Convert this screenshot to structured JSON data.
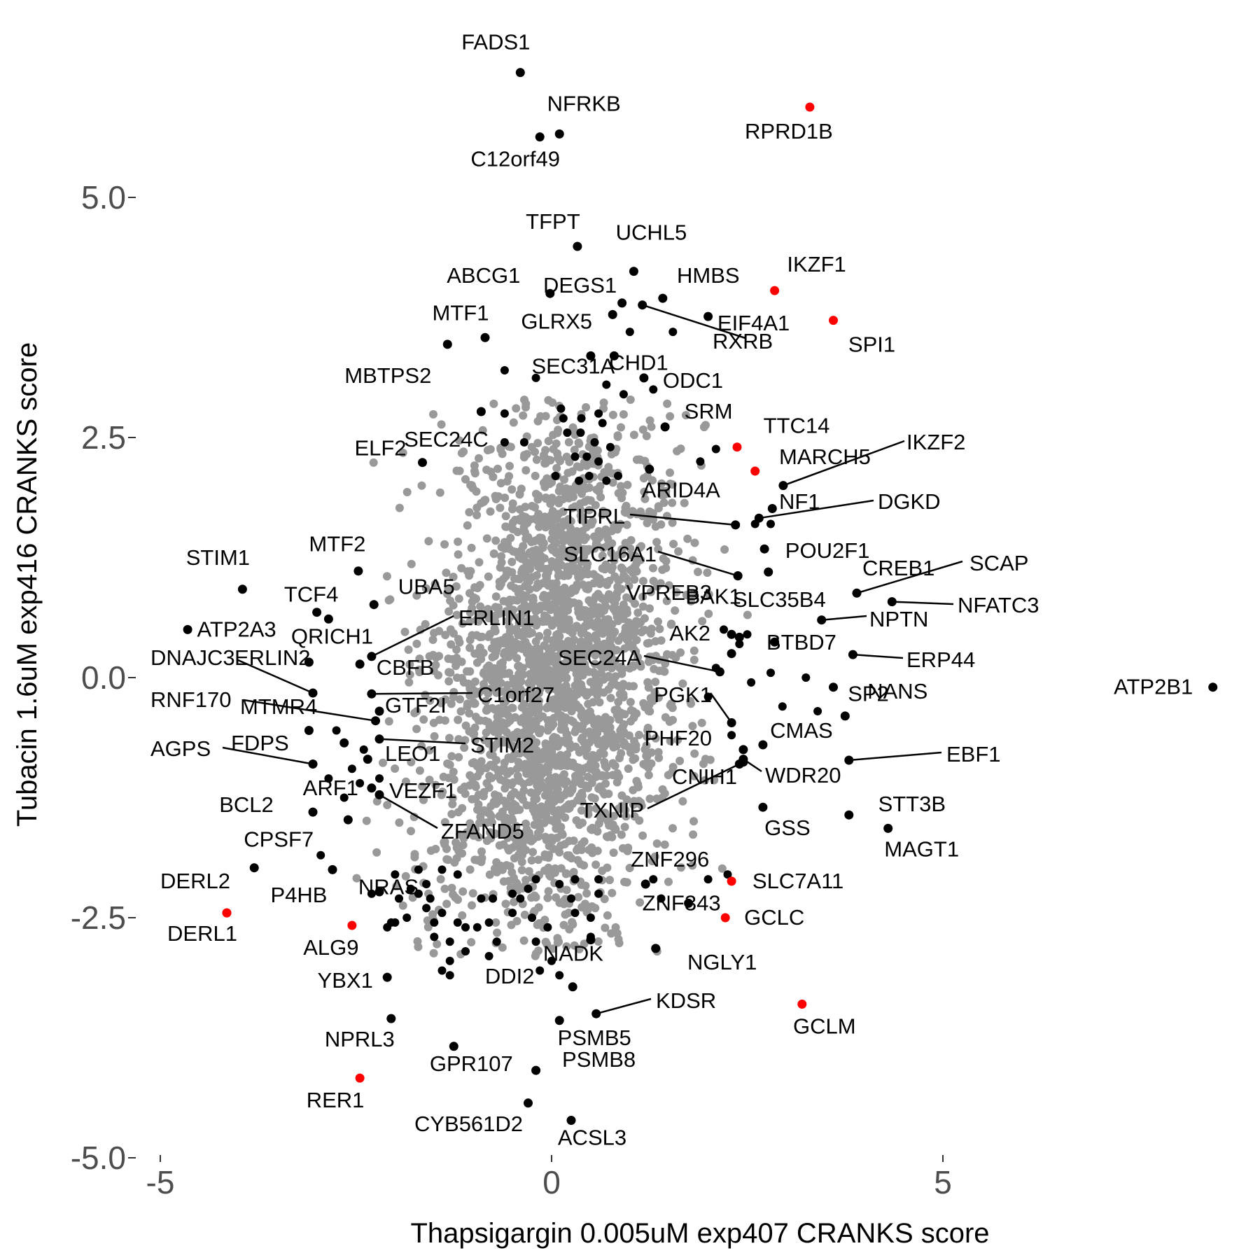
{
  "chart_data": {
    "type": "scatter",
    "title": "",
    "xlabel": "Thapsigargin 0.005uM exp407 CRANKS score",
    "ylabel": "Tubacin 1.6uM exp416 CRANKS score",
    "xlim": [
      -5.3,
      8.6
    ],
    "ylim": [
      -5.2,
      6.9
    ],
    "x_ticks": [
      -5,
      0,
      5
    ],
    "x_tick_labels": [
      "-5",
      "0",
      "5"
    ],
    "y_ticks": [
      5.0,
      2.5,
      0.0,
      -2.5,
      -5.0
    ],
    "y_tick_labels": [
      "5.0",
      "2.5",
      "0.0",
      "-2.5",
      "-5.0"
    ],
    "grid": false,
    "legend": "none",
    "colors": {
      "background": "#d9d9d9",
      "black": "#000000",
      "red": "#ff0000",
      "axis_text": "#4d4d4d"
    },
    "background_cloud": {
      "description": "",
      "color": "#999999"
    },
    "points": [
      {
        "label": "FADS1",
        "x": -0.4,
        "y": 6.3,
        "color": "black"
      },
      {
        "label": "NFRKB",
        "x": 0.1,
        "y": 5.66,
        "color": "black"
      },
      {
        "label": "C12orf49",
        "x": -0.15,
        "y": 5.63,
        "color": "black"
      },
      {
        "label": "RPRD1B",
        "x": 3.3,
        "y": 5.94,
        "color": "red"
      },
      {
        "label": "TFPT",
        "x": 0.33,
        "y": 4.49,
        "color": "black"
      },
      {
        "label": "UCHL5",
        "x": 1.05,
        "y": 4.23,
        "color": "black"
      },
      {
        "label": "IKZF1",
        "x": 2.85,
        "y": 4.03,
        "color": "red"
      },
      {
        "label": "ABCG1",
        "x": -0.02,
        "y": 4.0,
        "color": "black"
      },
      {
        "label": "HMBS",
        "x": 1.42,
        "y": 3.95,
        "color": "black"
      },
      {
        "label": "DEGS1",
        "x": 0.9,
        "y": 3.9,
        "color": "black"
      },
      {
        "label": "RXRB",
        "x": 1.16,
        "y": 3.88,
        "color": "black"
      },
      {
        "label": "GLRX5",
        "x": 0.78,
        "y": 3.78,
        "color": "black"
      },
      {
        "label": "EIF4A1",
        "x": 2.0,
        "y": 3.76,
        "color": "black"
      },
      {
        "label": "SPI1",
        "x": 3.6,
        "y": 3.72,
        "color": "red"
      },
      {
        "label": "MTF1",
        "x": -0.85,
        "y": 3.54,
        "color": "black"
      },
      {
        "label": "MBTPS2",
        "x": -1.33,
        "y": 3.47,
        "color": "black"
      },
      {
        "label": "SEC31A",
        "x": 0.5,
        "y": 3.35,
        "color": "black"
      },
      {
        "label": "CHD1",
        "x": 0.8,
        "y": 3.35,
        "color": "black"
      },
      {
        "label": "ODC1",
        "x": 1.18,
        "y": 3.12,
        "color": "black"
      },
      {
        "label": "ELF2",
        "x": -1.65,
        "y": 2.24,
        "color": "black"
      },
      {
        "label": "SRM",
        "x": 1.45,
        "y": 2.61,
        "color": "black"
      },
      {
        "label": "TTC14",
        "x": 2.37,
        "y": 2.4,
        "color": "red"
      },
      {
        "label": "MARCH5",
        "x": 2.6,
        "y": 2.15,
        "color": "red"
      },
      {
        "label": "IKZF2",
        "x": 2.96,
        "y": 2.0,
        "color": "black"
      },
      {
        "label": "SEC24C",
        "x": -0.9,
        "y": 2.77,
        "color": "black"
      },
      {
        "label": "ARID4A",
        "x": 1.25,
        "y": 2.17,
        "color": "black"
      },
      {
        "label": "NF1",
        "x": 2.82,
        "y": 1.76,
        "color": "black"
      },
      {
        "label": "DGKD",
        "x": 2.65,
        "y": 1.66,
        "color": "black"
      },
      {
        "label": "TIPRL",
        "x": 2.35,
        "y": 1.59,
        "color": "black"
      },
      {
        "label": "POU2F1",
        "x": 2.72,
        "y": 1.34,
        "color": "black"
      },
      {
        "label": "BAK1",
        "x": 2.38,
        "y": 1.06,
        "color": "black"
      },
      {
        "label": "SLC16A1",
        "x": 2.38,
        "y": 1.06,
        "color": "black"
      },
      {
        "label": "CREB1",
        "x": 2.77,
        "y": 1.1,
        "color": "black"
      },
      {
        "label": "SCAP",
        "x": 3.9,
        "y": 0.88,
        "color": "black"
      },
      {
        "label": "NFATC3",
        "x": 4.35,
        "y": 0.79,
        "color": "black"
      },
      {
        "label": "MTF2",
        "x": -2.47,
        "y": 1.11,
        "color": "black"
      },
      {
        "label": "STIM1",
        "x": -3.95,
        "y": 0.92,
        "color": "black"
      },
      {
        "label": "TCF4",
        "x": -3.0,
        "y": 0.68,
        "color": "black"
      },
      {
        "label": "UBA5",
        "x": -2.27,
        "y": 0.76,
        "color": "black"
      },
      {
        "label": "ATP2A3",
        "x": -4.65,
        "y": 0.5,
        "color": "black"
      },
      {
        "label": "QRICH1",
        "x": -2.85,
        "y": 0.61,
        "color": "black"
      },
      {
        "label": "ERLIN1",
        "x": -2.3,
        "y": 0.22,
        "color": "black"
      },
      {
        "label": "VPREB3",
        "x": 2.4,
        "y": 0.42,
        "color": "black"
      },
      {
        "label": "SLC35B4",
        "x": 2.3,
        "y": 0.45,
        "color": "black"
      },
      {
        "label": "NPTN",
        "x": 3.45,
        "y": 0.6,
        "color": "black"
      },
      {
        "label": "AK2",
        "x": 2.3,
        "y": 0.25,
        "color": "black"
      },
      {
        "label": "BTBD7",
        "x": 2.85,
        "y": 0.37,
        "color": "black"
      },
      {
        "label": "ERP44",
        "x": 3.85,
        "y": 0.24,
        "color": "black"
      },
      {
        "label": "DNAJC3",
        "x": -3.1,
        "y": 0.16,
        "color": "black"
      },
      {
        "label": "ERLIN2",
        "x": -3.05,
        "y": -0.16,
        "color": "black"
      },
      {
        "label": "CBFB",
        "x": -2.45,
        "y": 0.14,
        "color": "black"
      },
      {
        "label": "SEC24A",
        "x": 2.15,
        "y": 0.06,
        "color": "black"
      },
      {
        "label": "SP2",
        "x": 3.6,
        "y": -0.1,
        "color": "black"
      },
      {
        "label": "ATP2B1",
        "x": 8.45,
        "y": -0.1,
        "color": "black"
      },
      {
        "label": "C1orf27",
        "x": -2.3,
        "y": -0.17,
        "color": "black"
      },
      {
        "label": "RNF170",
        "x": -3.1,
        "y": -0.55,
        "color": "black"
      },
      {
        "label": "MTMR4",
        "x": -2.25,
        "y": -0.45,
        "color": "black"
      },
      {
        "label": "GTF2I",
        "x": -2.2,
        "y": -0.35,
        "color": "black"
      },
      {
        "label": "PGK1",
        "x": 2.3,
        "y": -0.47,
        "color": "black"
      },
      {
        "label": "NANS",
        "x": 3.75,
        "y": -0.4,
        "color": "black"
      },
      {
        "label": "CMAS",
        "x": 2.7,
        "y": -0.7,
        "color": "black"
      },
      {
        "label": "AGPS",
        "x": -3.05,
        "y": -0.9,
        "color": "black"
      },
      {
        "label": "FDPS",
        "x": -2.65,
        "y": -0.68,
        "color": "black"
      },
      {
        "label": "STIM2",
        "x": -2.2,
        "y": -0.64,
        "color": "black"
      },
      {
        "label": "LEO1",
        "x": -2.35,
        "y": -0.85,
        "color": "black"
      },
      {
        "label": "PHF20",
        "x": 2.45,
        "y": -0.75,
        "color": "black"
      },
      {
        "label": "WDR20",
        "x": 2.45,
        "y": -0.85,
        "color": "black"
      },
      {
        "label": "EBF1",
        "x": 3.8,
        "y": -0.86,
        "color": "black"
      },
      {
        "label": "CNIH1",
        "x": 2.45,
        "y": -0.88,
        "color": "black"
      },
      {
        "label": "BCL2",
        "x": -3.05,
        "y": -1.4,
        "color": "black"
      },
      {
        "label": "ARF1",
        "x": -2.6,
        "y": -1.48,
        "color": "black"
      },
      {
        "label": "VEZF1",
        "x": -2.3,
        "y": -1.15,
        "color": "black"
      },
      {
        "label": "ZFAND5",
        "x": -2.2,
        "y": -1.22,
        "color": "black"
      },
      {
        "label": "GSS",
        "x": 2.7,
        "y": -1.35,
        "color": "black"
      },
      {
        "label": "STT3B",
        "x": 3.8,
        "y": -1.43,
        "color": "black"
      },
      {
        "label": "MAGT1",
        "x": 4.3,
        "y": -1.57,
        "color": "black"
      },
      {
        "label": "TXNIP",
        "x": 2.4,
        "y": -0.9,
        "color": "black"
      },
      {
        "label": "CPSF7",
        "x": -3.8,
        "y": -1.98,
        "color": "black"
      },
      {
        "label": "NRAS",
        "x": -2.8,
        "y": -2.0,
        "color": "black"
      },
      {
        "label": "ZNF296",
        "x": 1.2,
        "y": -2.15,
        "color": "black"
      },
      {
        "label": "SLC7A11",
        "x": 2.3,
        "y": -2.12,
        "color": "red"
      },
      {
        "label": "P4HB",
        "x": -2.2,
        "y": -2.23,
        "color": "black"
      },
      {
        "label": "DERL2",
        "x": -4.15,
        "y": -2.45,
        "color": "red"
      },
      {
        "label": "DERL1",
        "x": -4.15,
        "y": -2.45,
        "color": "red"
      },
      {
        "label": "ZNF343",
        "x": 1.75,
        "y": -2.35,
        "color": "black"
      },
      {
        "label": "GCLC",
        "x": 2.22,
        "y": -2.5,
        "color": "red"
      },
      {
        "label": "ALG9",
        "x": -2.55,
        "y": -2.58,
        "color": "red"
      },
      {
        "label": "NGLY1",
        "x": 1.33,
        "y": -2.82,
        "color": "black"
      },
      {
        "label": "NADK",
        "x": 0.5,
        "y": -2.73,
        "color": "black"
      },
      {
        "label": "DDI2",
        "x": 0.27,
        "y": -3.22,
        "color": "black"
      },
      {
        "label": "YBX1",
        "x": -2.1,
        "y": -3.12,
        "color": "black"
      },
      {
        "label": "KDSR",
        "x": 0.57,
        "y": -3.5,
        "color": "black"
      },
      {
        "label": "GCLM",
        "x": 3.2,
        "y": -3.4,
        "color": "red"
      },
      {
        "label": "NPRL3",
        "x": -2.05,
        "y": -3.55,
        "color": "black"
      },
      {
        "label": "PSMB5",
        "x": 0.1,
        "y": -3.57,
        "color": "black"
      },
      {
        "label": "GPR107",
        "x": -1.25,
        "y": -3.84,
        "color": "black"
      },
      {
        "label": "RER1",
        "x": -2.45,
        "y": -4.17,
        "color": "red"
      },
      {
        "label": "PSMB8",
        "x": -0.2,
        "y": -4.09,
        "color": "black"
      },
      {
        "label": "CYB561D2",
        "x": -0.3,
        "y": -4.43,
        "color": "black"
      },
      {
        "label": "ACSL3",
        "x": 0.25,
        "y": -4.61,
        "color": "black"
      }
    ],
    "unlabeled_black_points": [
      [
        -0.6,
        3.2
      ],
      [
        -0.2,
        3.12
      ],
      [
        -0.6,
        2.75
      ],
      [
        0.12,
        2.8
      ],
      [
        0.15,
        2.7
      ],
      [
        0.38,
        2.7
      ],
      [
        0.6,
        2.75
      ],
      [
        0.65,
        2.65
      ],
      [
        0.2,
        2.55
      ],
      [
        0.37,
        2.55
      ],
      [
        0.55,
        2.45
      ],
      [
        0.75,
        2.4
      ],
      [
        0.3,
        2.3
      ],
      [
        0.45,
        2.3
      ],
      [
        0.6,
        2.25
      ],
      [
        0.48,
        2.1
      ],
      [
        0.35,
        2.05
      ],
      [
        0.7,
        2.05
      ],
      [
        0.85,
        2.1
      ],
      [
        0.05,
        2.1
      ],
      [
        -0.35,
        2.45
      ],
      [
        -0.6,
        2.45
      ],
      [
        0.7,
        3.05
      ],
      [
        0.92,
        2.95
      ],
      [
        1.3,
        3.0
      ],
      [
        1.9,
        2.25
      ],
      [
        2.1,
        2.38
      ],
      [
        1.0,
        3.6
      ],
      [
        1.55,
        3.6
      ],
      [
        2.1,
        0.1
      ],
      [
        2.0,
        -0.2
      ],
      [
        2.3,
        -0.6
      ],
      [
        2.8,
        0.05
      ],
      [
        3.25,
        0.0
      ],
      [
        3.4,
        -0.35
      ],
      [
        2.95,
        -0.3
      ],
      [
        2.55,
        -0.05
      ],
      [
        2.5,
        0.45
      ],
      [
        2.2,
        0.5
      ],
      [
        2.4,
        0.35
      ],
      [
        2.6,
        1.6
      ],
      [
        2.8,
        1.6
      ],
      [
        -2.75,
        -0.55
      ],
      [
        -2.4,
        -0.75
      ],
      [
        -2.55,
        -0.95
      ],
      [
        -2.45,
        -1.1
      ],
      [
        -2.2,
        -1.05
      ],
      [
        -2.85,
        -1.05
      ],
      [
        -2.65,
        -1.25
      ],
      [
        -2.95,
        -1.85
      ],
      [
        -2.3,
        -2.25
      ],
      [
        -2.0,
        -2.55
      ],
      [
        -1.85,
        -2.5
      ],
      [
        -1.6,
        -2.4
      ],
      [
        -1.6,
        -2.15
      ],
      [
        -1.7,
        -2.25
      ],
      [
        -1.4,
        -2.45
      ],
      [
        -1.2,
        -2.55
      ],
      [
        -1.5,
        -2.7
      ],
      [
        -1.3,
        -2.75
      ],
      [
        -1.1,
        -2.85
      ],
      [
        -1.3,
        -2.95
      ],
      [
        -0.95,
        -2.6
      ],
      [
        -0.8,
        -2.55
      ],
      [
        -0.7,
        -2.75
      ],
      [
        -0.8,
        -2.9
      ],
      [
        -0.5,
        -2.45
      ],
      [
        -0.25,
        -2.5
      ],
      [
        -0.2,
        -2.75
      ],
      [
        0.0,
        -2.95
      ],
      [
        -0.4,
        -2.3
      ],
      [
        0.5,
        -2.5
      ],
      [
        0.6,
        -2.25
      ],
      [
        0.3,
        -2.45
      ],
      [
        -0.15,
        -3.05
      ],
      [
        1.3,
        -2.1
      ],
      [
        1.4,
        -2.3
      ],
      [
        2.0,
        -2.1
      ],
      [
        2.25,
        -2.05
      ],
      [
        -0.2,
        -2.1
      ],
      [
        0.3,
        -2.1
      ],
      [
        0.6,
        -2.1
      ],
      [
        -1.4,
        -2.0
      ],
      [
        -1.7,
        -2.0
      ],
      [
        -2.05,
        -2.55
      ],
      [
        -2.1,
        -2.6
      ],
      [
        -1.4,
        -3.05
      ],
      [
        -1.3,
        -3.1
      ],
      [
        -0.75,
        -2.3
      ],
      [
        -2.0,
        -2.05
      ],
      [
        -1.2,
        -2.05
      ],
      [
        -0.9,
        -2.3
      ],
      [
        -0.5,
        -2.25
      ],
      [
        -0.3,
        -2.2
      ],
      [
        0.1,
        -2.15
      ],
      [
        0.25,
        -2.3
      ],
      [
        0.5,
        -2.7
      ],
      [
        0.1,
        -3.1
      ],
      [
        -0.05,
        -2.6
      ],
      [
        -1.1,
        -2.6
      ],
      [
        -1.5,
        -2.55
      ],
      [
        -1.95,
        -2.3
      ],
      [
        -1.55,
        -2.3
      ],
      [
        -1.8,
        -2.2
      ]
    ]
  }
}
